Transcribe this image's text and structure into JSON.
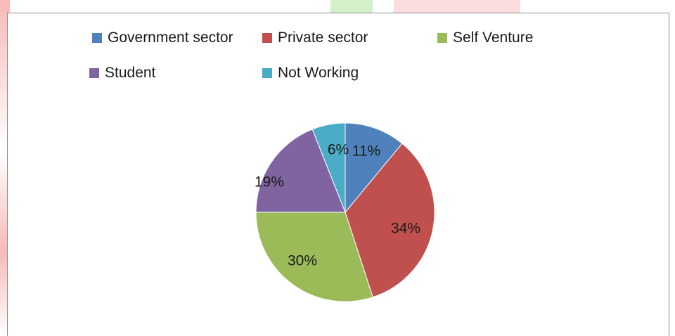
{
  "chart_data": {
    "type": "pie",
    "series": [
      {
        "name": "Government sector",
        "value": 11,
        "label": "11%",
        "color": "#4f81bd"
      },
      {
        "name": "Private sector",
        "value": 34,
        "label": "34%",
        "color": "#c0504d"
      },
      {
        "name": "Self Venture",
        "value": 30,
        "label": "30%",
        "color": "#9bbb59"
      },
      {
        "name": "Student",
        "value": 19,
        "label": "19%",
        "color": "#8064a2"
      },
      {
        "name": "Not Working",
        "value": 6,
        "label": "6%",
        "color": "#4bacc6"
      }
    ],
    "legend_placement": "top"
  }
}
